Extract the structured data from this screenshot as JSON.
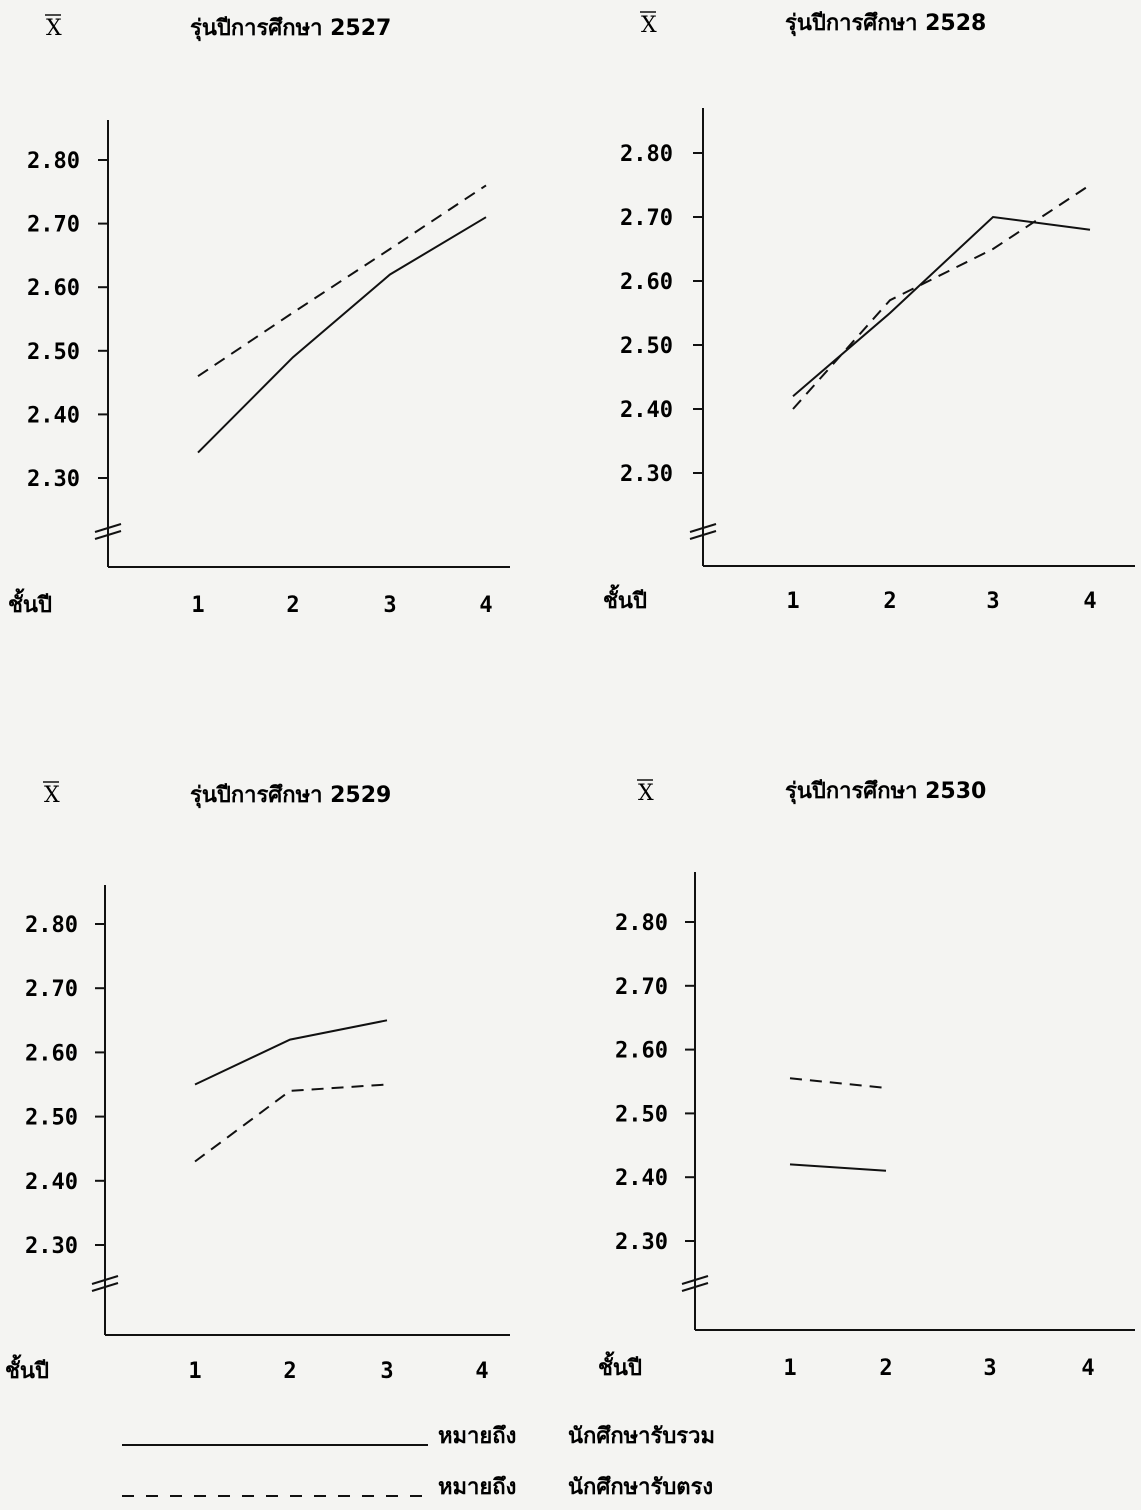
{
  "chart_data": [
    {
      "type": "line",
      "title": "รุ่นปีการศึกษา 2527",
      "ylabel": "X",
      "xlabel": "ชั้นปี",
      "categories": [
        "1",
        "2",
        "3",
        "4"
      ],
      "yticks": [
        "2.30",
        "2.40",
        "2.50",
        "2.60",
        "2.70",
        "2.80"
      ],
      "ylim": [
        2.3,
        2.8
      ],
      "axis_break": true,
      "series": [
        {
          "style": "solid",
          "values": [
            2.34,
            2.49,
            2.62,
            2.71
          ]
        },
        {
          "style": "dashed",
          "values": [
            2.46,
            2.56,
            2.66,
            2.76
          ]
        }
      ]
    },
    {
      "type": "line",
      "title": "รุ่นปีการศึกษา 2528",
      "ylabel": "X",
      "xlabel": "ชั้นปี",
      "categories": [
        "1",
        "2",
        "3",
        "4"
      ],
      "yticks": [
        "2.30",
        "2.40",
        "2.50",
        "2.60",
        "2.70",
        "2.80"
      ],
      "ylim": [
        2.3,
        2.8
      ],
      "axis_break": true,
      "series": [
        {
          "style": "solid",
          "values": [
            2.42,
            2.55,
            2.7,
            2.68
          ]
        },
        {
          "style": "dashed",
          "values": [
            2.4,
            2.57,
            2.65,
            2.75
          ]
        }
      ]
    },
    {
      "type": "line",
      "title": "รุ่นปีการศึกษา 2529",
      "ylabel": "X",
      "xlabel": "ชั้นปี",
      "categories": [
        "1",
        "2",
        "3",
        "4"
      ],
      "yticks": [
        "2.30",
        "2.40",
        "2.50",
        "2.60",
        "2.70",
        "2.80"
      ],
      "ylim": [
        2.3,
        2.8
      ],
      "axis_break": true,
      "series": [
        {
          "style": "solid",
          "values": [
            2.55,
            2.62,
            2.65,
            null
          ]
        },
        {
          "style": "dashed",
          "values": [
            2.43,
            2.54,
            2.55,
            null
          ]
        }
      ]
    },
    {
      "type": "line",
      "title": "รุ่นปีการศึกษา 2530",
      "ylabel": "X",
      "xlabel": "ชั้นปี",
      "categories": [
        "1",
        "2",
        "3",
        "4"
      ],
      "yticks": [
        "2.30",
        "2.40",
        "2.50",
        "2.60",
        "2.70",
        "2.80"
      ],
      "ylim": [
        2.3,
        2.8
      ],
      "axis_break": true,
      "series": [
        {
          "style": "solid",
          "values": [
            2.42,
            2.41,
            null,
            null
          ]
        },
        {
          "style": "dashed",
          "values": [
            2.555,
            2.54,
            null,
            null
          ]
        }
      ]
    }
  ],
  "legend": [
    {
      "style": "solid",
      "prefix": "หมายถึง",
      "label": "นักศึกษารับรวม"
    },
    {
      "style": "dashed",
      "prefix": "หมายถึง",
      "label": "นักศึกษารับตรง"
    }
  ]
}
